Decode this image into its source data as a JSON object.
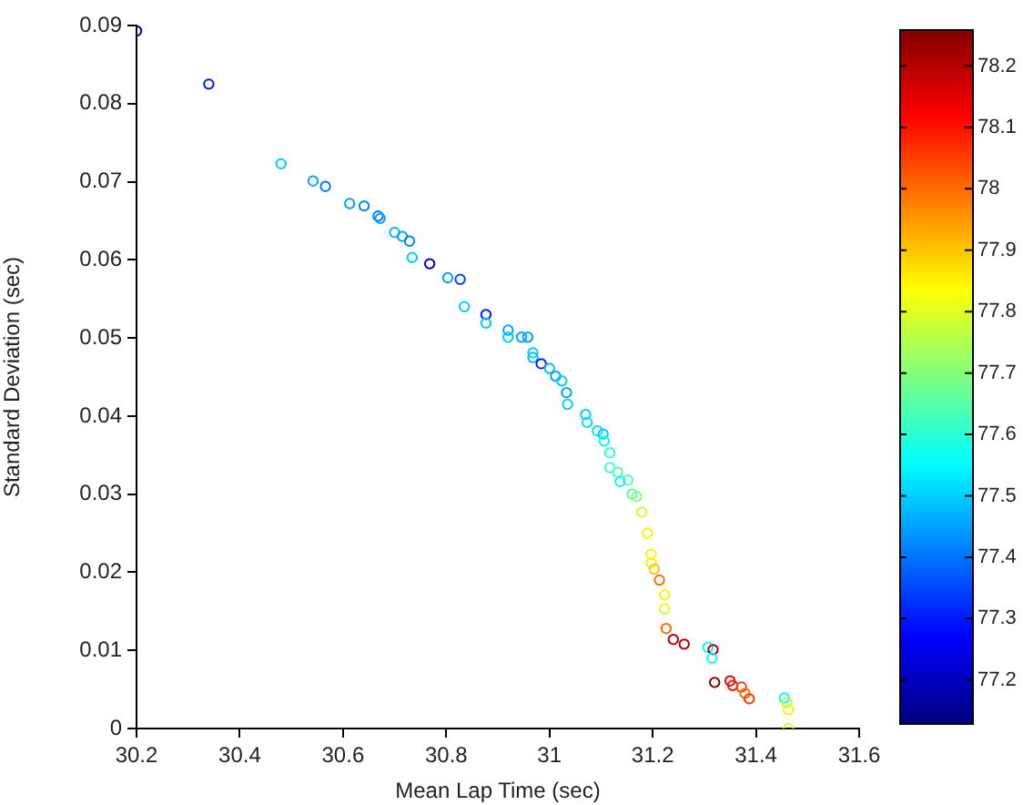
{
  "chart_data": {
    "type": "scatter",
    "xlabel": "Mean Lap Time (sec)",
    "ylabel": "Standard Deviation (sec)",
    "marker": "circle",
    "grid": false,
    "legend": false,
    "xlim": [
      30.2,
      31.6
    ],
    "xticks": [
      30.2,
      30.4,
      30.6,
      30.8,
      31,
      31.2,
      31.4,
      31.6
    ],
    "ylim": [
      0,
      0.09
    ],
    "yticks": [
      0,
      0.01,
      0.02,
      0.03,
      0.04,
      0.05,
      0.06,
      0.07,
      0.08,
      0.09
    ],
    "clim": [
      77.13,
      78.26
    ],
    "cticks": [
      77.2,
      77.3,
      77.4,
      77.5,
      77.6,
      77.7,
      77.8,
      77.9,
      78,
      78.1,
      78.2
    ],
    "x": [
      30.2,
      30.34,
      30.48,
      30.542,
      30.566,
      30.613,
      30.641,
      30.668,
      30.672,
      30.7,
      30.715,
      30.729,
      30.734,
      30.768,
      30.803,
      30.827,
      30.835,
      30.877,
      30.877,
      30.92,
      30.92,
      30.946,
      30.958,
      30.968,
      30.968,
      30.984,
      31.0,
      31.012,
      31.024,
      31.033,
      31.035,
      31.07,
      31.073,
      31.093,
      31.104,
      31.106,
      31.117,
      31.117,
      31.132,
      31.152,
      31.137,
      31.16,
      31.169,
      31.179,
      31.19,
      31.197,
      31.197,
      31.203,
      31.213,
      31.223,
      31.223,
      31.226,
      31.24,
      31.261,
      31.307,
      31.317,
      31.315,
      31.32,
      31.35,
      31.355,
      31.372,
      31.379,
      31.387,
      31.455,
      31.46,
      31.463,
      31.463
    ],
    "values": [
      0.0893,
      0.0825,
      0.0723,
      0.0701,
      0.0694,
      0.0672,
      0.0669,
      0.0656,
      0.0653,
      0.0635,
      0.063,
      0.0624,
      0.0603,
      0.0595,
      0.0577,
      0.0575,
      0.054,
      0.053,
      0.0519,
      0.051,
      0.0501,
      0.0501,
      0.0501,
      0.0481,
      0.0475,
      0.0467,
      0.0461,
      0.0451,
      0.0445,
      0.043,
      0.0415,
      0.0402,
      0.0392,
      0.0381,
      0.0377,
      0.0368,
      0.0353,
      0.0334,
      0.0328,
      0.0318,
      0.0316,
      0.03,
      0.0297,
      0.0277,
      0.025,
      0.0223,
      0.0212,
      0.0204,
      0.019,
      0.0171,
      0.0153,
      0.0128,
      0.0114,
      0.0108,
      0.0104,
      0.0101,
      0.009,
      0.0059,
      0.0061,
      0.0055,
      0.0053,
      0.0045,
      0.0038,
      0.0039,
      0.0033,
      0.0024,
      0.0
    ],
    "cvalues": [
      77.2,
      77.3,
      77.5,
      77.45,
      77.4,
      77.45,
      77.42,
      77.4,
      77.45,
      77.48,
      77.45,
      77.42,
      77.5,
      77.2,
      77.45,
      77.35,
      77.5,
      77.3,
      77.5,
      77.45,
      77.5,
      77.45,
      77.45,
      77.5,
      77.48,
      77.3,
      77.48,
      77.45,
      77.5,
      77.45,
      77.5,
      77.5,
      77.52,
      77.52,
      77.5,
      77.55,
      77.6,
      77.62,
      77.65,
      77.65,
      77.55,
      77.65,
      77.7,
      77.78,
      77.85,
      77.85,
      77.85,
      77.9,
      78.0,
      77.85,
      77.8,
      78.0,
      78.2,
      78.2,
      77.55,
      78.2,
      77.55,
      78.25,
      78.15,
      78.1,
      78.05,
      78.0,
      78.05,
      77.55,
      77.75,
      77.85,
      77.8
    ]
  }
}
